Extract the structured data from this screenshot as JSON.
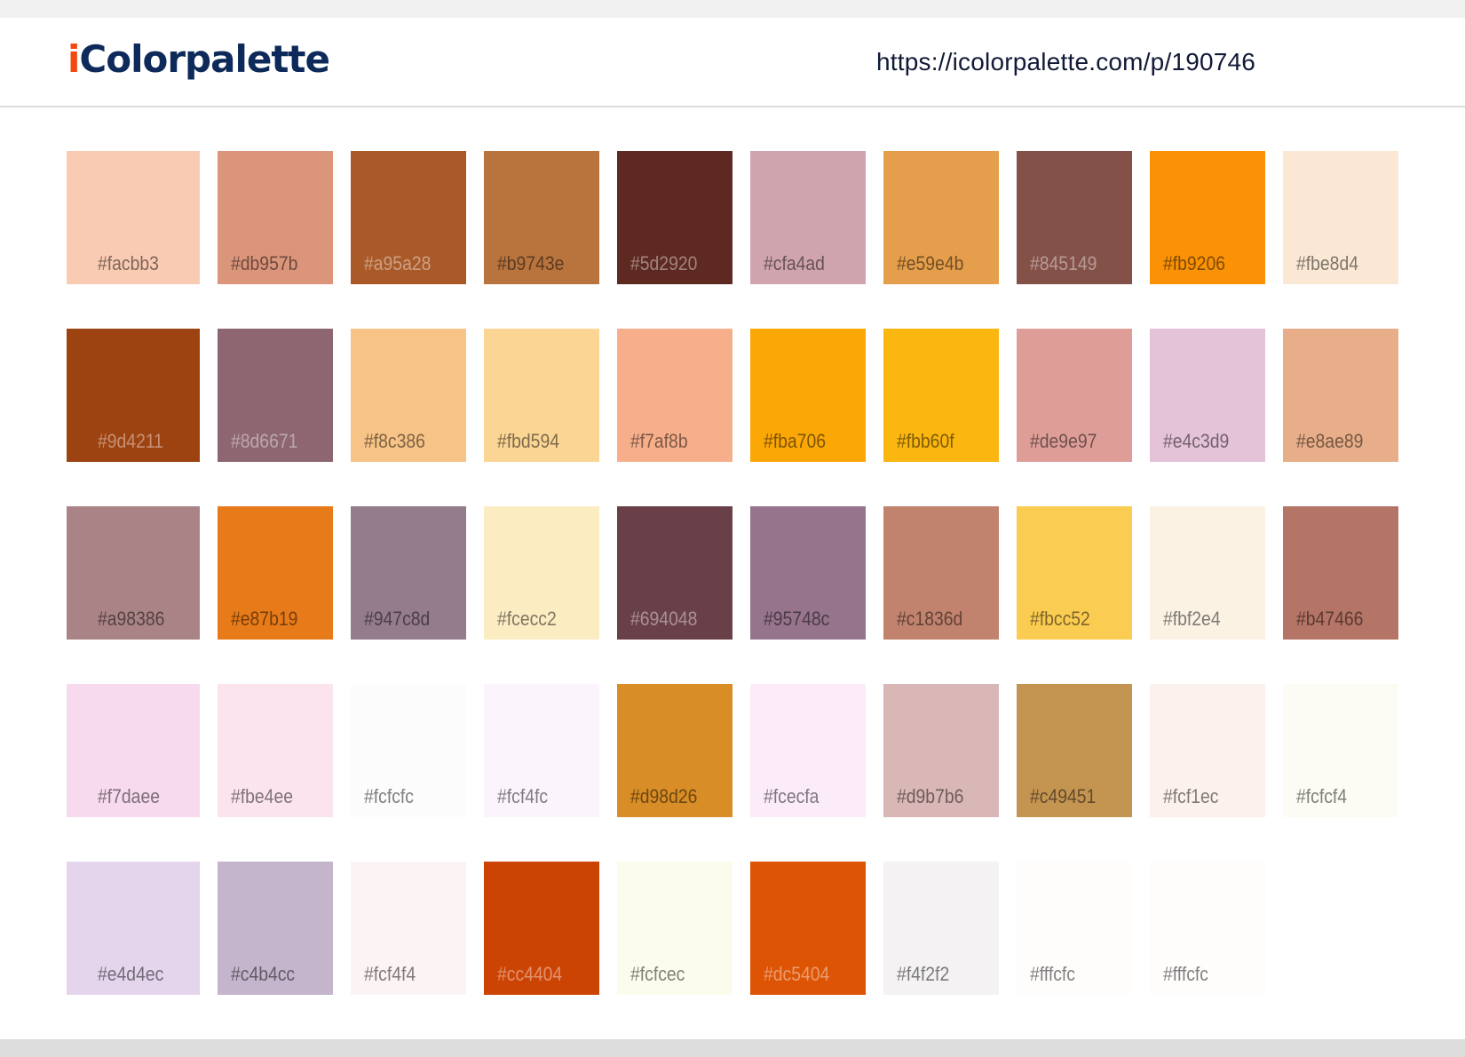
{
  "header": {
    "logo_prefix": "i",
    "logo_rest": "Colorpalette",
    "url": "https://icolorpalette.com/p/190746"
  },
  "palette": {
    "rows": [
      [
        "#facbb3",
        "#db957b",
        "#a95a28",
        "#b9743e",
        "#5d2920",
        "#cfa4ad",
        "#e59e4b",
        "#845149",
        "#fb9206",
        "#fbe8d4"
      ],
      [
        "#9d4211",
        "#8d6671",
        "#f8c386",
        "#fbd594",
        "#f7af8b",
        "#fba706",
        "#fbb60f",
        "#de9e97",
        "#e4c3d9",
        "#e8ae89"
      ],
      [
        "#a98386",
        "#e87b19",
        "#947c8d",
        "#fcecc2",
        "#694048",
        "#95748c",
        "#c1836d",
        "#fbcc52",
        "#fbf2e4",
        "#b47466"
      ],
      [
        "#f7daee",
        "#fbe4ee",
        "#fcfcfc",
        "#fcf4fc",
        "#d98d26",
        "#fcecfa",
        "#d9b7b6",
        "#c49451",
        "#fcf1ec",
        "#fcfcf4"
      ],
      [
        "#e4d4ec",
        "#c4b4cc",
        "#fcf4f4",
        "#cc4404",
        "#fcfcec",
        "#dc5404",
        "#f4f2f2",
        "#fffcfc",
        "#fffcfc"
      ]
    ]
  },
  "colors": {
    "logo_i": "#f24a0e",
    "logo_text": "#0d2a5a",
    "url_text": "#111a36",
    "top_band": "#f0f0f0",
    "footer_band": "#dddddd"
  }
}
